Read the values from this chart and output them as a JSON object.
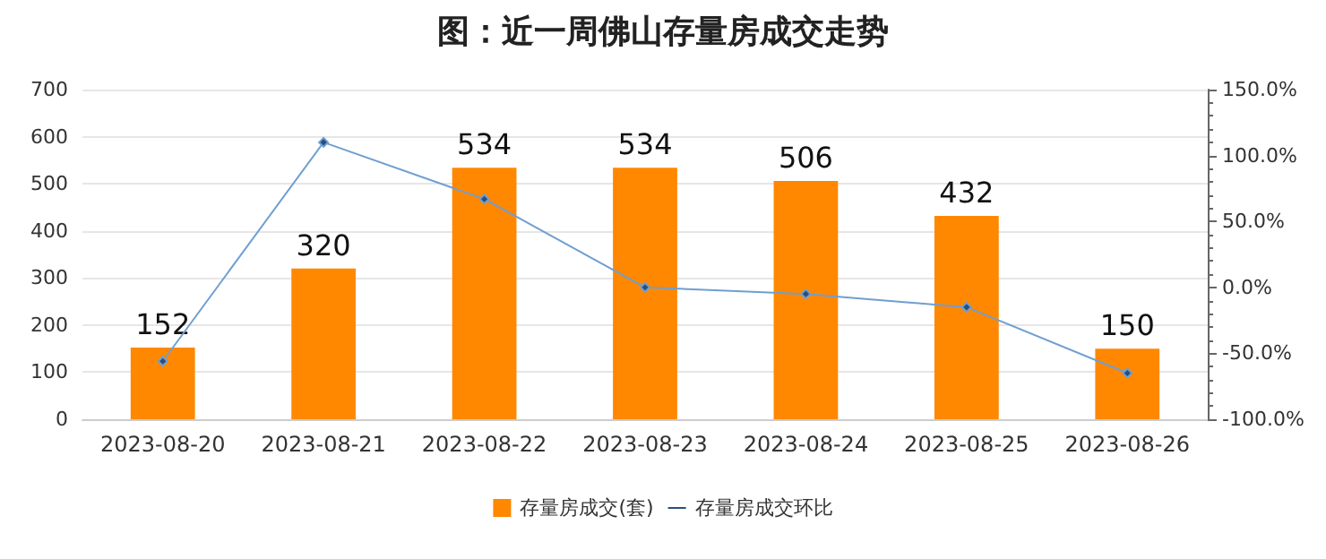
{
  "chart_data": {
    "type": "bar",
    "title": "图：近一周佛山存量房成交走势",
    "categories": [
      "2023-08-20",
      "2023-08-21",
      "2023-08-22",
      "2023-08-23",
      "2023-08-24",
      "2023-08-25",
      "2023-08-26"
    ],
    "series": [
      {
        "name": "存量房成交(套)",
        "color": "#ff8800",
        "values": [
          152,
          320,
          534,
          534,
          506,
          432,
          150
        ],
        "value_labels": [
          "152",
          "320",
          "534",
          "534",
          "506",
          "432",
          "150"
        ]
      },
      {
        "name": "存量房成交环比",
        "type": "line",
        "axis": "y2",
        "color": "#6f9fd0",
        "values": [
          -56,
          110,
          67,
          0,
          -5,
          -15,
          -65
        ],
        "marker": "diamond"
      }
    ],
    "ylim": [
      0,
      700
    ],
    "yticks": [
      0,
      100,
      200,
      300,
      400,
      500,
      600,
      700
    ],
    "y2lim": [
      -100,
      150
    ],
    "y2ticks": [
      {
        "value": -100,
        "label": "-100.0%"
      },
      {
        "value": -50,
        "label": "-50.0%"
      },
      {
        "value": 0,
        "label": "0.0%"
      },
      {
        "value": 50,
        "label": "50.0%"
      },
      {
        "value": 100,
        "label": "100.0%"
      },
      {
        "value": 150,
        "label": "150.0%"
      }
    ],
    "grid": "y",
    "legend": "bottom"
  }
}
